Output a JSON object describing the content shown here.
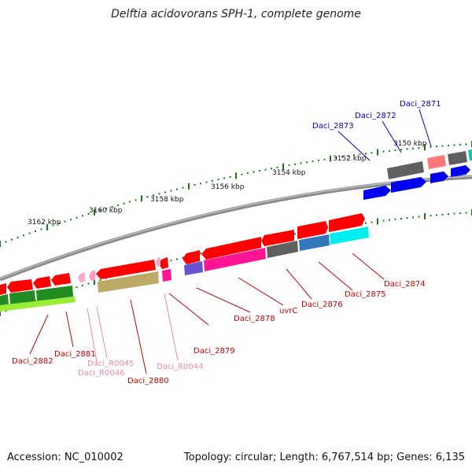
{
  "title": "Delftia acidovorans SPH-1, complete genome",
  "footer": {
    "accession": "Accession: NC_010002",
    "summary": "Topology: circular; Length: 6,767,514 bp; Genes: 6,135"
  },
  "colors": {
    "backbone": "#8a8a8a",
    "tick": "#1a7a1a",
    "label_red": "#cc0000",
    "label_pink": "#ee88aa",
    "label_blue": "#0000cc"
  },
  "scale_labels": [
    "3150 kbp",
    "3152 kbp",
    "3154 kbp",
    "3156 kbp",
    "3158 kbp",
    "3160 kbp",
    "3162 kbp"
  ],
  "gene_labels": [
    {
      "text": "Daci_2871",
      "color": "blue"
    },
    {
      "text": "Daci_2872",
      "color": "blue"
    },
    {
      "text": "Daci_2873",
      "color": "blue"
    },
    {
      "text": "Daci_2874",
      "color": "red"
    },
    {
      "text": "Daci_2875",
      "color": "red"
    },
    {
      "text": "Daci_2876",
      "color": "red"
    },
    {
      "text": "uvrC",
      "color": "red"
    },
    {
      "text": "Daci_2878",
      "color": "red"
    },
    {
      "text": "Daci_2879",
      "color": "red"
    },
    {
      "text": "Daci_R0044",
      "color": "pink"
    },
    {
      "text": "Daci_2880",
      "color": "red"
    },
    {
      "text": "Daci_R0045",
      "color": "pink"
    },
    {
      "text": "Daci_R0046",
      "color": "pink"
    },
    {
      "text": "Daci_2881",
      "color": "red"
    },
    {
      "text": "Daci_2882",
      "color": "red"
    }
  ]
}
